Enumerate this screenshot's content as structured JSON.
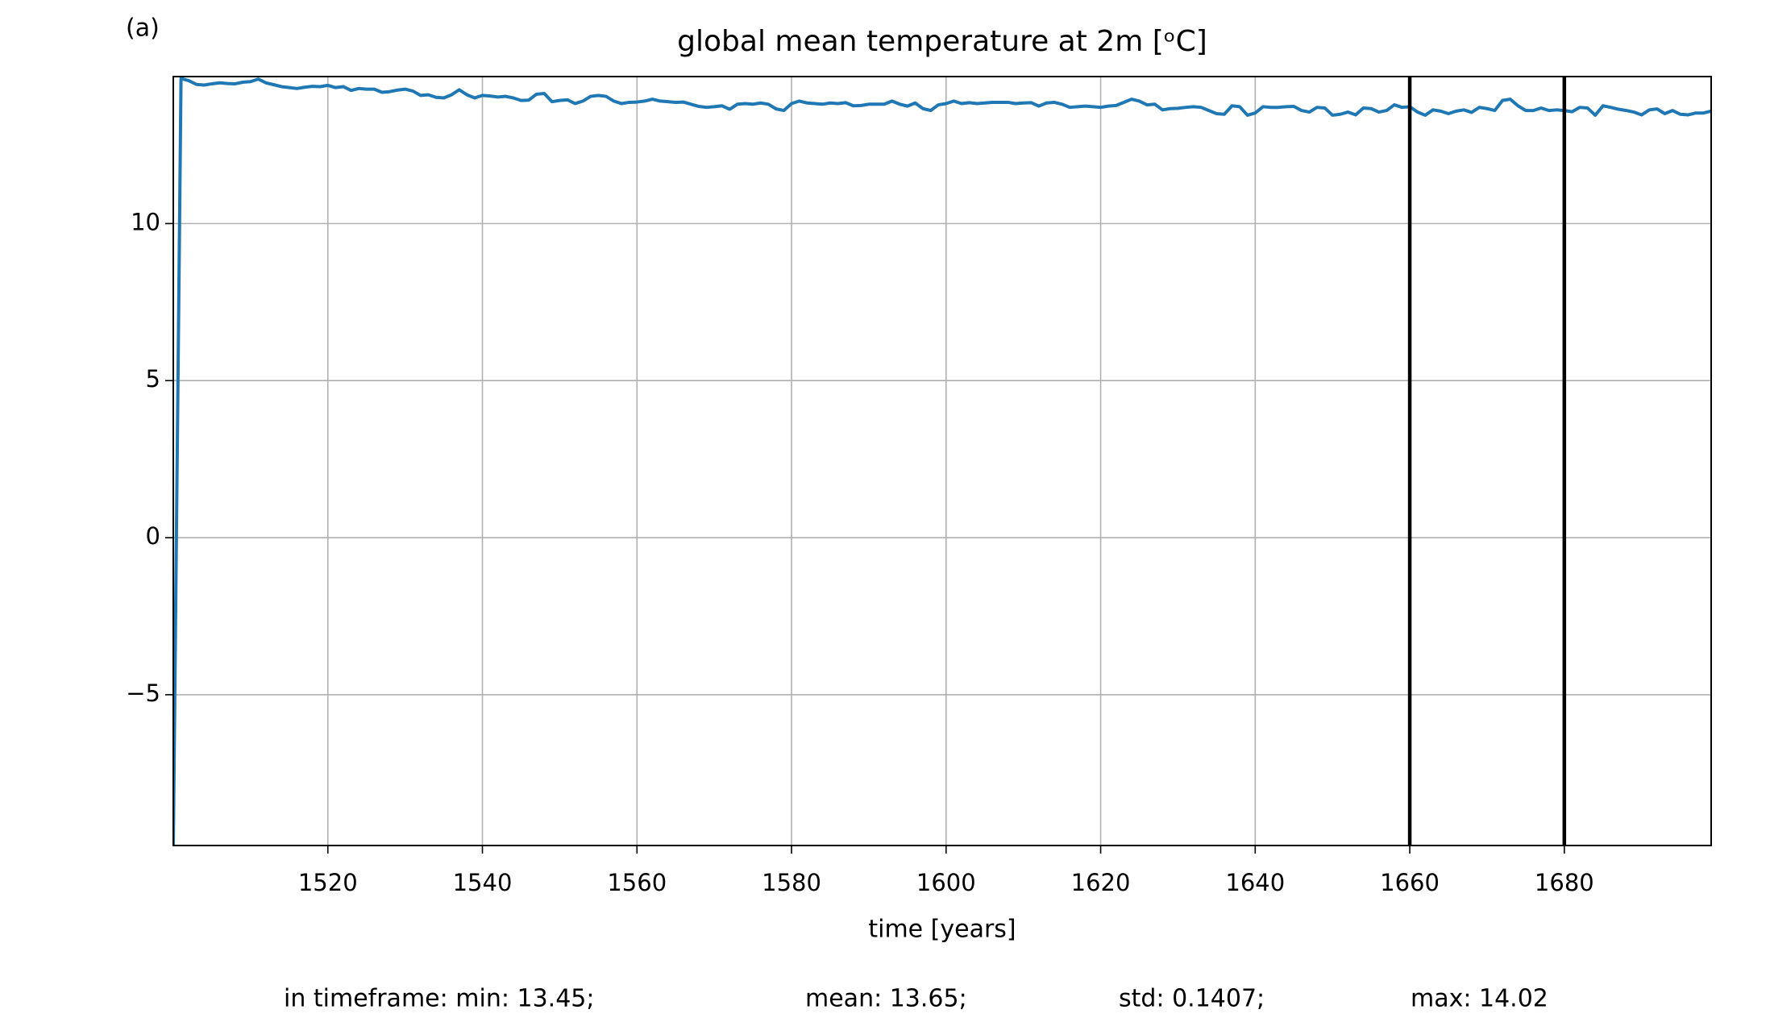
{
  "chart_data": {
    "type": "line",
    "panel_label": "(a)",
    "title": "global mean temperature at 2m [ᵒC]",
    "x_label": "time [years]",
    "footer": [
      "in timeframe: min: 13.45;",
      "mean: 13.65;",
      "std: 0.1407;",
      "max: 14.02"
    ],
    "xlim": [
      1500,
      1699
    ],
    "ylim": [
      -9.8,
      14.68
    ],
    "xticks": [
      1520,
      1540,
      1560,
      1580,
      1600,
      1620,
      1640,
      1660,
      1680
    ],
    "yticks": [
      {
        "value": -5,
        "label": "−5"
      },
      0,
      5,
      10
    ],
    "grid": true,
    "vlines": [
      1660,
      1680
    ],
    "vline_color": "#000000",
    "x": [
      1500,
      1501,
      1502,
      1503,
      1504,
      1505,
      1506,
      1507,
      1508,
      1509,
      1510,
      1511,
      1512,
      1513,
      1514,
      1515,
      1516,
      1517,
      1518,
      1519,
      1520,
      1521,
      1522,
      1523,
      1524,
      1525,
      1526,
      1527,
      1528,
      1529,
      1530,
      1531,
      1532,
      1533,
      1534,
      1535,
      1536,
      1537,
      1538,
      1539,
      1540,
      1541,
      1542,
      1543,
      1544,
      1545,
      1546,
      1547,
      1548,
      1549,
      1550,
      1551,
      1552,
      1553,
      1554,
      1555,
      1556,
      1557,
      1558,
      1559,
      1560,
      1561,
      1562,
      1563,
      1564,
      1565,
      1566,
      1567,
      1568,
      1569,
      1570,
      1571,
      1572,
      1573,
      1574,
      1575,
      1576,
      1577,
      1578,
      1579,
      1580,
      1581,
      1582,
      1583,
      1584,
      1585,
      1586,
      1587,
      1588,
      1589,
      1590,
      1591,
      1592,
      1593,
      1594,
      1595,
      1596,
      1597,
      1598,
      1599,
      1600,
      1601,
      1602,
      1603,
      1604,
      1605,
      1606,
      1607,
      1608,
      1609,
      1610,
      1611,
      1612,
      1613,
      1614,
      1615,
      1616,
      1617,
      1618,
      1619,
      1620,
      1621,
      1622,
      1623,
      1624,
      1625,
      1626,
      1627,
      1628,
      1629,
      1630,
      1631,
      1632,
      1633,
      1634,
      1635,
      1636,
      1637,
      1638,
      1639,
      1640,
      1641,
      1642,
      1643,
      1644,
      1645,
      1646,
      1647,
      1648,
      1649,
      1650,
      1651,
      1652,
      1653,
      1654,
      1655,
      1656,
      1657,
      1658,
      1659,
      1660,
      1661,
      1662,
      1663,
      1664,
      1665,
      1666,
      1667,
      1668,
      1669,
      1670,
      1671,
      1672,
      1673,
      1674,
      1675,
      1676,
      1677,
      1678,
      1679,
      1680,
      1681,
      1682,
      1683,
      1684,
      1685,
      1686,
      1687,
      1688,
      1689,
      1690,
      1691,
      1692,
      1693,
      1694,
      1695,
      1696,
      1697,
      1698,
      1699
    ],
    "series": [
      {
        "color": "#1f77b4",
        "values": [
          -9.8,
          14.62,
          14.55,
          14.43,
          14.41,
          14.45,
          14.48,
          14.46,
          14.45,
          14.5,
          14.52,
          14.6,
          14.48,
          14.42,
          14.36,
          14.33,
          14.3,
          14.34,
          14.37,
          14.36,
          14.4,
          14.33,
          14.36,
          14.24,
          14.3,
          14.28,
          14.28,
          14.18,
          14.2,
          14.25,
          14.28,
          14.22,
          14.08,
          14.1,
          14.02,
          14.0,
          14.1,
          14.26,
          14.1,
          14.0,
          14.08,
          14.06,
          14.03,
          14.05,
          14.0,
          13.92,
          13.93,
          14.12,
          14.14,
          13.88,
          13.92,
          13.94,
          13.82,
          13.9,
          14.05,
          14.08,
          14.05,
          13.9,
          13.82,
          13.86,
          13.87,
          13.9,
          13.96,
          13.9,
          13.88,
          13.86,
          13.87,
          13.8,
          13.73,
          13.7,
          13.72,
          13.75,
          13.64,
          13.8,
          13.82,
          13.8,
          13.84,
          13.8,
          13.65,
          13.6,
          13.82,
          13.9,
          13.84,
          13.82,
          13.8,
          13.84,
          13.82,
          13.85,
          13.75,
          13.76,
          13.8,
          13.8,
          13.8,
          13.9,
          13.8,
          13.74,
          13.84,
          13.66,
          13.6,
          13.78,
          13.82,
          13.9,
          13.82,
          13.85,
          13.82,
          13.84,
          13.86,
          13.86,
          13.86,
          13.82,
          13.84,
          13.85,
          13.74,
          13.84,
          13.86,
          13.8,
          13.7,
          13.72,
          13.74,
          13.72,
          13.7,
          13.74,
          13.76,
          13.86,
          13.96,
          13.9,
          13.78,
          13.8,
          13.62,
          13.66,
          13.67,
          13.7,
          13.72,
          13.7,
          13.6,
          13.5,
          13.48,
          13.75,
          13.72,
          13.45,
          13.52,
          13.72,
          13.7,
          13.7,
          13.72,
          13.73,
          13.6,
          13.55,
          13.7,
          13.68,
          13.45,
          13.48,
          13.55,
          13.46,
          13.68,
          13.66,
          13.55,
          13.6,
          13.78,
          13.7,
          13.72,
          13.55,
          13.45,
          13.62,
          13.58,
          13.5,
          13.58,
          13.62,
          13.54,
          13.7,
          13.66,
          13.6,
          13.92,
          13.96,
          13.75,
          13.6,
          13.6,
          13.68,
          13.6,
          13.62,
          13.6,
          13.56,
          13.7,
          13.68,
          13.45,
          13.75,
          13.7,
          13.64,
          13.6,
          13.55,
          13.46,
          13.62,
          13.65,
          13.5,
          13.6,
          13.48,
          13.46,
          13.52,
          13.52,
          13.58
        ]
      }
    ]
  }
}
